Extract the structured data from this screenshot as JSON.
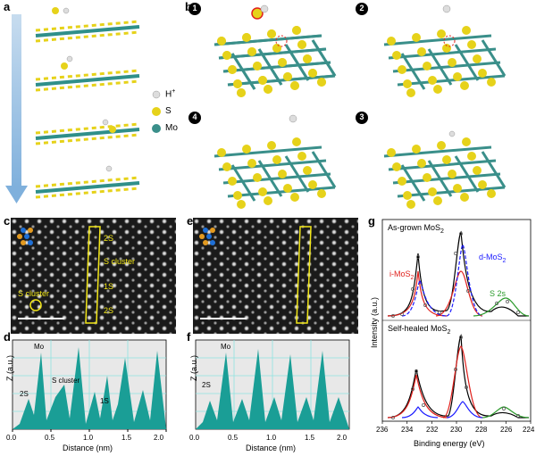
{
  "panel_labels": {
    "a": "a",
    "b": "b",
    "c": "c",
    "d": "d",
    "e": "e",
    "f": "f",
    "g": "g"
  },
  "legend_a": {
    "h_label": "H",
    "h_sup": "+",
    "s_label": "S",
    "mo_label": "Mo"
  },
  "steps_b": [
    "1",
    "2",
    "4",
    "3"
  ],
  "stem_c": {
    "annotations": [
      "2S",
      "S cluster",
      "1S",
      "2S"
    ],
    "circle_label": "S cluster"
  },
  "profile_d": {
    "ylabel": "Z (a.u.)",
    "xlabel": "Distance (nm)",
    "xticks": [
      "0.0",
      "0.5",
      "1.0",
      "1.5",
      "2.0"
    ],
    "annotations": {
      "mo": "Mo",
      "s_cluster": "S cluster",
      "two_s": "2S",
      "one_s": "1S"
    }
  },
  "profile_f": {
    "ylabel": "Z (a.u.)",
    "xlabel": "Distance (nm)",
    "xticks": [
      "0.0",
      "0.5",
      "1.0",
      "1.5",
      "2.0"
    ],
    "annotations": {
      "mo": "Mo",
      "two_s": "2S"
    }
  },
  "xps_g": {
    "ylabel": "Intensity (a.u.)",
    "xlabel": "Binding energy (eV)",
    "xticks": [
      "236",
      "234",
      "232",
      "230",
      "228",
      "226",
      "224"
    ],
    "top_title": "As-grown MoS",
    "top_title_sub": "2",
    "bottom_title": "Self-healed MoS",
    "bottom_title_sub": "2",
    "i_mos2": "i-MoS",
    "i_mos2_sub": "2",
    "d_mos2": "d-MoS",
    "d_mos2_sub": "2",
    "s2s": "S 2s"
  },
  "colors": {
    "teal": "#1a9e96",
    "sulfur": "#e6d21a",
    "mo": "#3a8f8a",
    "arrow": "#8db4d9",
    "yellow_box": "#f2e617",
    "red": "#e0201c",
    "blue": "#1a1aff",
    "green": "#2a9a2a"
  }
}
